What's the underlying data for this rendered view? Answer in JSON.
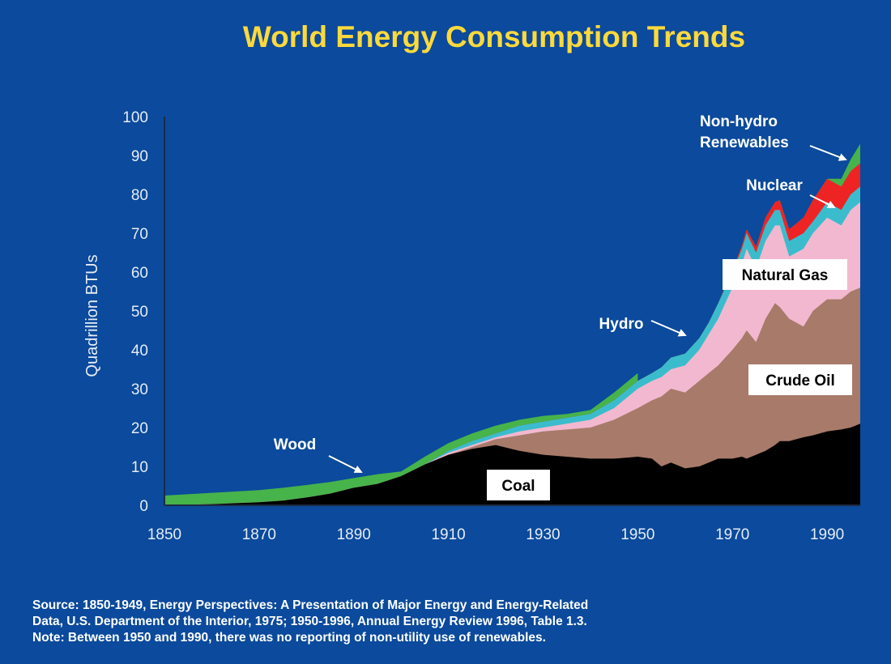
{
  "colors": {
    "background": "#0b4a9c",
    "title": "#ffd93b",
    "axis_text": "#e6ecf5",
    "annotation_text": "#ffffff",
    "label_box": "#ffffff",
    "label_box_text": "#000000",
    "coal": "#000000",
    "crude_oil": "#a77a6a",
    "natural_gas": "#f2b8cf",
    "hydro": "#3bbccd",
    "nuclear": "#ee2424",
    "non_hydro_renewables": "#47b34b",
    "wood": "#47b34b"
  },
  "chart_data": {
    "type": "area",
    "stacked": true,
    "title": "World Energy Consumption Trends",
    "xlabel": "",
    "ylabel": "Quadrillion BTUs",
    "xlim": [
      1850,
      1997
    ],
    "ylim": [
      0,
      100
    ],
    "x_ticks": [
      1850,
      1870,
      1890,
      1910,
      1930,
      1950,
      1970,
      1990
    ],
    "y_ticks": [
      0,
      10,
      20,
      30,
      40,
      50,
      60,
      70,
      80,
      90,
      100
    ],
    "grid": false,
    "layer_totals": {
      "coal": {
        "x": [
          1850,
          1860,
          1870,
          1875,
          1880,
          1885,
          1890,
          1895,
          1900,
          1905,
          1910,
          1915,
          1920,
          1925,
          1930,
          1935,
          1940,
          1945,
          1950,
          1953,
          1955,
          1957,
          1960,
          1963,
          1965,
          1967,
          1970,
          1972,
          1973,
          1975,
          1977,
          1979,
          1980,
          1982,
          1985,
          1987,
          1990,
          1993,
          1995,
          1997
        ],
        "y": [
          0,
          0.3,
          0.8,
          1.2,
          2,
          3,
          4.5,
          5.5,
          7.5,
          10.5,
          13,
          14.5,
          15.5,
          14,
          13,
          12.5,
          12,
          12,
          12.5,
          12,
          10,
          11,
          9.5,
          10,
          11,
          12,
          12,
          12.5,
          12,
          13,
          14,
          15.5,
          16.5,
          16.5,
          17.5,
          18,
          19,
          19.5,
          20,
          21
        ]
      },
      "crude_oil": {
        "x": [
          1850,
          1860,
          1870,
          1875,
          1880,
          1885,
          1890,
          1895,
          1900,
          1905,
          1910,
          1915,
          1920,
          1925,
          1930,
          1935,
          1940,
          1945,
          1950,
          1953,
          1955,
          1957,
          1960,
          1963,
          1965,
          1967,
          1970,
          1972,
          1973,
          1975,
          1977,
          1979,
          1980,
          1982,
          1985,
          1987,
          1990,
          1993,
          1995,
          1997
        ],
        "y": [
          0,
          0.3,
          0.8,
          1.2,
          2,
          3,
          4.5,
          5.5,
          7.5,
          10.5,
          13,
          15,
          17,
          18,
          19,
          19.5,
          20,
          22,
          25,
          27,
          28,
          30,
          29,
          32,
          34,
          36,
          40,
          43,
          45,
          42,
          48,
          52,
          51,
          48,
          46,
          50,
          53,
          53,
          55,
          56
        ]
      },
      "natural_gas": {
        "x": [
          1850,
          1860,
          1870,
          1875,
          1880,
          1885,
          1890,
          1895,
          1900,
          1905,
          1910,
          1915,
          1920,
          1925,
          1930,
          1935,
          1940,
          1945,
          1950,
          1953,
          1955,
          1957,
          1960,
          1963,
          1965,
          1967,
          1970,
          1972,
          1973,
          1975,
          1977,
          1979,
          1980,
          1982,
          1985,
          1987,
          1990,
          1993,
          1995,
          1997
        ],
        "y": [
          0,
          0.3,
          0.8,
          1.2,
          2,
          3,
          4.5,
          5.5,
          7.5,
          10.5,
          13.5,
          15.5,
          17.5,
          19,
          20,
          21,
          22,
          25,
          30,
          32,
          33,
          35,
          36,
          40,
          44,
          48,
          56,
          62,
          66,
          61,
          68,
          72,
          72,
          64,
          66,
          70,
          74,
          72,
          76,
          78
        ]
      },
      "hydro": {
        "x": [
          1850,
          1860,
          1870,
          1875,
          1880,
          1885,
          1890,
          1895,
          1900,
          1905,
          1910,
          1915,
          1920,
          1925,
          1930,
          1935,
          1940,
          1945,
          1950,
          1953,
          1955,
          1957,
          1960,
          1963,
          1965,
          1967,
          1970,
          1972,
          1973,
          1975,
          1977,
          1979,
          1980,
          1982,
          1985,
          1987,
          1990,
          1993,
          1995,
          1997
        ],
        "y": [
          0,
          0.3,
          0.8,
          1.2,
          2,
          3,
          4.5,
          5.5,
          7.5,
          10.5,
          14,
          16.5,
          18.5,
          20.5,
          21.5,
          22.5,
          23.5,
          27,
          32,
          34,
          35.5,
          38,
          39,
          43,
          47,
          52,
          60,
          66,
          70,
          65,
          72,
          76,
          76,
          68,
          70,
          73,
          78,
          76,
          80,
          82
        ]
      },
      "nuclear": {
        "x": [
          1850,
          1860,
          1870,
          1875,
          1880,
          1885,
          1890,
          1895,
          1900,
          1905,
          1910,
          1915,
          1920,
          1925,
          1930,
          1935,
          1940,
          1945,
          1950,
          1953,
          1955,
          1957,
          1960,
          1963,
          1965,
          1967,
          1970,
          1972,
          1973,
          1975,
          1977,
          1979,
          1980,
          1982,
          1985,
          1987,
          1990,
          1993,
          1995,
          1997
        ],
        "y": [
          0,
          0.3,
          0.8,
          1.2,
          2,
          3,
          4.5,
          5.5,
          7.5,
          10.5,
          14,
          16.5,
          18.5,
          20.5,
          21.5,
          22.5,
          23.5,
          27,
          32,
          34,
          35.5,
          38,
          39,
          43,
          47,
          52,
          60.5,
          66.8,
          71,
          66.5,
          74,
          78,
          78.5,
          71,
          74,
          78.5,
          84,
          82,
          86,
          88
        ]
      },
      "non_hydro_renewables": {
        "x": [
          1850,
          1860,
          1870,
          1875,
          1880,
          1885,
          1890,
          1895,
          1900,
          1905,
          1910,
          1915,
          1920,
          1925,
          1930,
          1935,
          1940,
          1945,
          1950,
          1953,
          1955,
          1957,
          1960,
          1963,
          1965,
          1967,
          1970,
          1972,
          1973,
          1975,
          1977,
          1979,
          1980,
          1982,
          1985,
          1987,
          1990,
          1993,
          1995,
          1997
        ],
        "y": [
          0,
          0.3,
          0.8,
          1.2,
          2,
          3,
          4.5,
          5.5,
          7.5,
          10.5,
          14,
          16.5,
          18.5,
          20.5,
          21.5,
          22.5,
          23.5,
          27,
          32,
          34,
          35.5,
          38,
          39,
          43,
          47,
          52,
          60.5,
          66.8,
          71,
          66.5,
          74,
          78,
          78.5,
          71,
          74,
          78.5,
          84,
          84,
          89,
          93
        ]
      },
      "wood": {
        "x": [
          1850,
          1860,
          1870,
          1875,
          1880,
          1885,
          1890,
          1895,
          1900,
          1905,
          1910,
          1915,
          1920,
          1925,
          1930,
          1935,
          1940,
          1945,
          1950
        ],
        "y": [
          2.5,
          3.2,
          3.9,
          4.5,
          5.2,
          6,
          7,
          8,
          8.7,
          12.5,
          16,
          18.5,
          20.5,
          22,
          23,
          23.5,
          24.5,
          29,
          34
        ]
      }
    },
    "layer_order": [
      "coal",
      "crude_oil",
      "natural_gas",
      "hydro",
      "nuclear",
      "non_hydro_renewables",
      "wood"
    ],
    "annotations": {
      "coal": "Coal",
      "crude_oil": "Crude Oil",
      "natural_gas": "Natural Gas",
      "hydro": "Hydro",
      "nuclear": "Nuclear",
      "non_hydro_renewables_line1": "Non-hydro",
      "non_hydro_renewables_line2": "Renewables",
      "wood": "Wood"
    }
  },
  "source_note": {
    "line1": "Source:  1850-1949, Energy Perspectives:  A Presentation of Major Energy and Energy-Related",
    "line2": "Data, U.S. Department of the Interior, 1975; 1950-1996, Annual Energy Review 1996, Table 1.3.",
    "line3": "Note:  Between 1950 and 1990, there was no reporting of non-utility use of renewables."
  }
}
